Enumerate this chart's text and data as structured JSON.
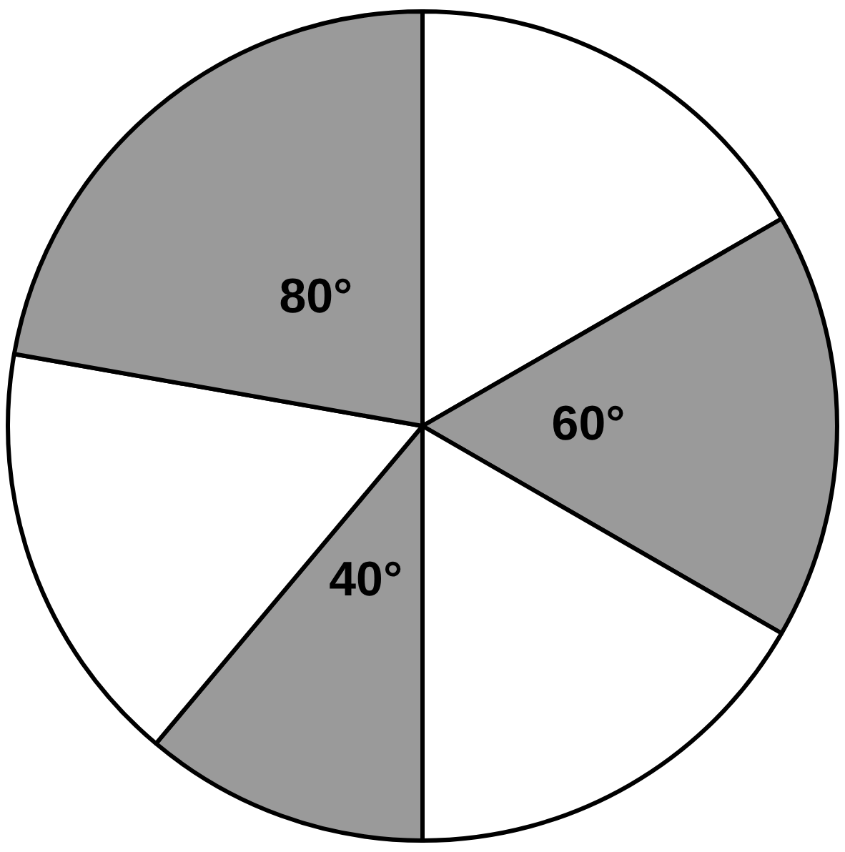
{
  "chart_data": {
    "type": "pie",
    "categories": [
      null,
      null,
      null,
      null,
      null,
      null
    ],
    "values": [
      60,
      60,
      60,
      40,
      60,
      80
    ],
    "colors": [
      "#ffffff",
      "#9a9a9a",
      "#ffffff",
      "#9a9a9a",
      "#ffffff",
      "#9a9a9a"
    ],
    "value_labels": [
      null,
      "60°",
      null,
      "40°",
      null,
      "80°"
    ]
  }
}
